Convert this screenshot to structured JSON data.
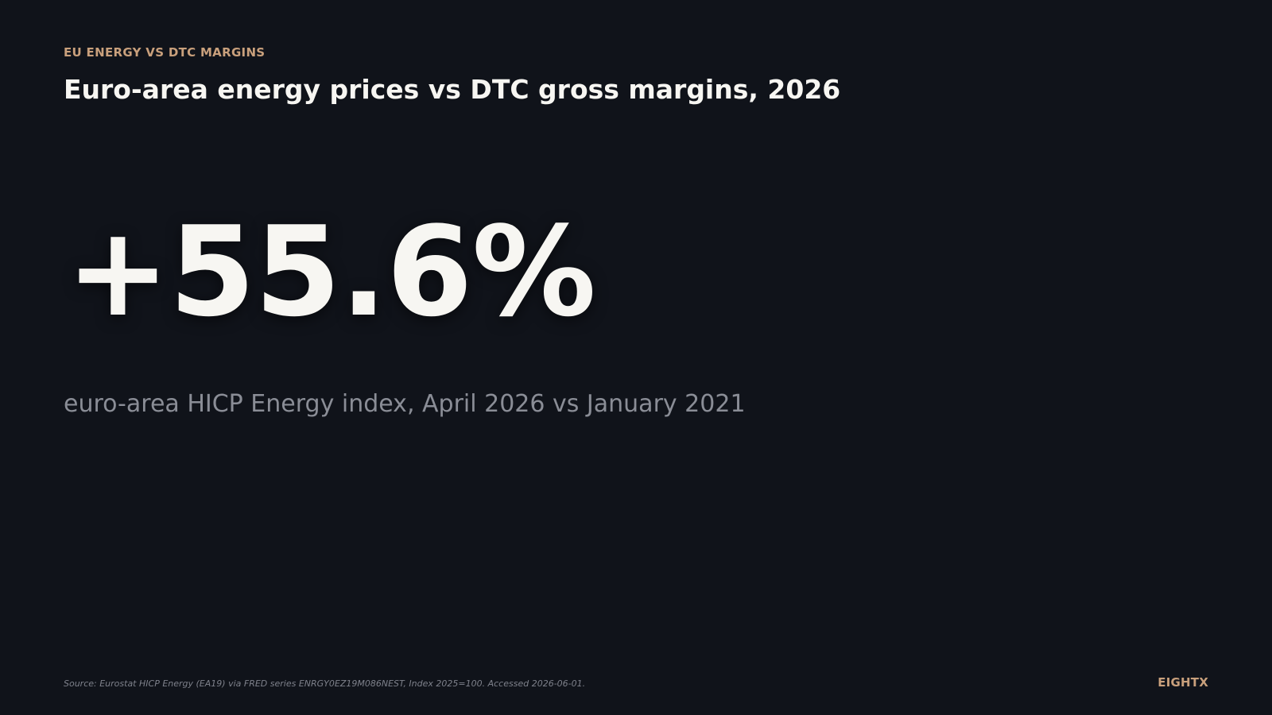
{
  "header": {
    "eyebrow": "EU ENERGY VS DTC MARGINS",
    "title": "Euro-area energy prices vs DTC gross margins, 2026"
  },
  "stat": {
    "value": "+55.6%",
    "caption": "euro-area HICP Energy index, April 2026 vs January 2021"
  },
  "footer": {
    "source": "Source: Eurostat HICP Energy (EA19) via FRED series ENRGY0EZ19M086NEST, Index 2025=100. Accessed 2026-06-01.",
    "brand": "EIGHTX"
  },
  "colors": {
    "background": "#10131a",
    "accent": "#c9a07c",
    "primary_text": "#f7f6f2",
    "muted_text": "#8a8d96"
  }
}
